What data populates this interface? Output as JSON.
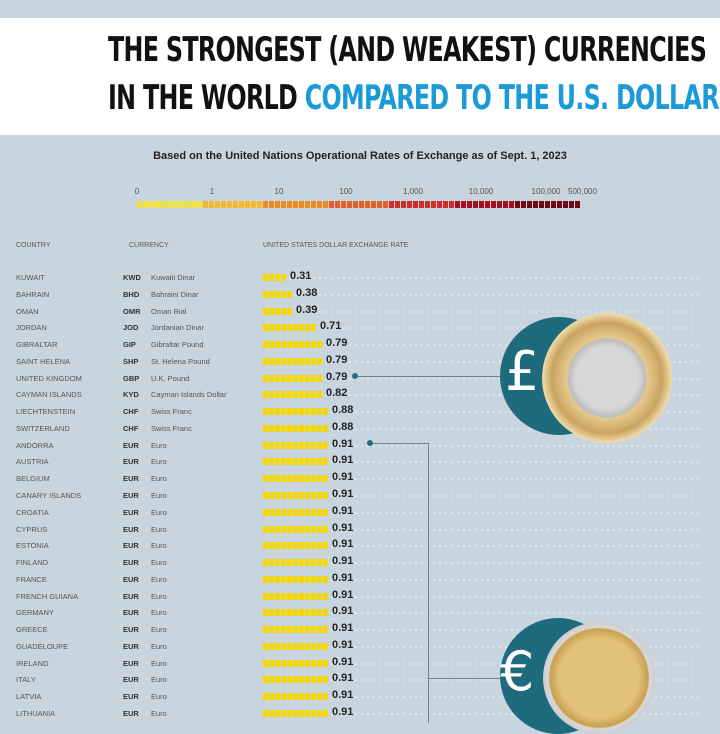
{
  "title": {
    "line1": "THE STRONGEST (AND WEAKEST) CURRENCIES",
    "line2a": "IN THE WORLD",
    "line2b": "COMPARED TO THE U.S. DOLLAR",
    "accent": "#1a9ad6"
  },
  "subtitle": "Based on the United Nations Operational Rates of Exchange as of Sept. 1, 2023",
  "legend": {
    "scale": "log",
    "ticks": [
      "0",
      "1",
      "10",
      "100",
      "1,000",
      "10,000",
      "100,000",
      "500,000"
    ],
    "colors": [
      "#f5e23a",
      "#f5b82a",
      "#ef8a22",
      "#e4602a",
      "#d02e2e",
      "#a5101e",
      "#6e0a14"
    ]
  },
  "columns": {
    "country": "COUNTRY",
    "currency": "CURRENCY",
    "rate": "UNITED STATES DOLLAR EXCHANGE RATE"
  },
  "icons": {
    "pound": "£",
    "euro": "€",
    "coin1": "uk-one-pound-coin",
    "coin2": "two-euro-coin"
  },
  "chart_data": {
    "type": "bar",
    "title": "THE STRONGEST (AND WEAKEST) CURRENCIES IN THE WORLD COMPARED TO THE U.S. DOLLAR",
    "xlabel": "UNITED STATES DOLLAR EXCHANGE RATE",
    "rows": [
      {
        "country": "Kuwait",
        "code": "KWD",
        "currency": "Kuwaiti Dinar",
        "value": 0.31
      },
      {
        "country": "Bahrain",
        "code": "BHD",
        "currency": "Bahraini Dinar",
        "value": 0.38
      },
      {
        "country": "Oman",
        "code": "OMR",
        "currency": "Oman Rial",
        "value": 0.39
      },
      {
        "country": "Jordan",
        "code": "JOD",
        "currency": "Jordanian Dinar",
        "value": 0.71
      },
      {
        "country": "Gibraltar",
        "code": "GIP",
        "currency": "Gibraltar Pound",
        "value": 0.79
      },
      {
        "country": "Saint Helena",
        "code": "SHP",
        "currency": "St. Helena Pound",
        "value": 0.79
      },
      {
        "country": "United Kingdom",
        "code": "GBP",
        "currency": "U.K. Pound",
        "value": 0.79
      },
      {
        "country": "Cayman Islands",
        "code": "KYD",
        "currency": "Cayman Islands Dollar",
        "value": 0.82
      },
      {
        "country": "Liechtenstein",
        "code": "CHF",
        "currency": "Swiss Franc",
        "value": 0.88
      },
      {
        "country": "Switzerland",
        "code": "CHF",
        "currency": "Swiss Franc",
        "value": 0.88
      },
      {
        "country": "Andorra",
        "code": "EUR",
        "currency": "Euro",
        "value": 0.91
      },
      {
        "country": "Austria",
        "code": "EUR",
        "currency": "Euro",
        "value": 0.91
      },
      {
        "country": "Belgium",
        "code": "EUR",
        "currency": "Euro",
        "value": 0.91
      },
      {
        "country": "Canary Islands",
        "code": "EUR",
        "currency": "Euro",
        "value": 0.91
      },
      {
        "country": "Croatia",
        "code": "EUR",
        "currency": "Euro",
        "value": 0.91
      },
      {
        "country": "Cyprus",
        "code": "EUR",
        "currency": "Euro",
        "value": 0.91
      },
      {
        "country": "Estonia",
        "code": "EUR",
        "currency": "Euro",
        "value": 0.91
      },
      {
        "country": "Finland",
        "code": "EUR",
        "currency": "Euro",
        "value": 0.91
      },
      {
        "country": "France",
        "code": "EUR",
        "currency": "Euro",
        "value": 0.91
      },
      {
        "country": "French Guiana",
        "code": "EUR",
        "currency": "Euro",
        "value": 0.91
      },
      {
        "country": "Germany",
        "code": "EUR",
        "currency": "Euro",
        "value": 0.91
      },
      {
        "country": "Greece",
        "code": "EUR",
        "currency": "Euro",
        "value": 0.91
      },
      {
        "country": "Guadeloupe",
        "code": "EUR",
        "currency": "Euro",
        "value": 0.91
      },
      {
        "country": "Ireland",
        "code": "EUR",
        "currency": "Euro",
        "value": 0.91
      },
      {
        "country": "Italy",
        "code": "EUR",
        "currency": "Euro",
        "value": 0.91
      },
      {
        "country": "Latvia",
        "code": "EUR",
        "currency": "Euro",
        "value": 0.91
      },
      {
        "country": "Lithuania",
        "code": "EUR",
        "currency": "Euro",
        "value": 0.91
      }
    ]
  }
}
